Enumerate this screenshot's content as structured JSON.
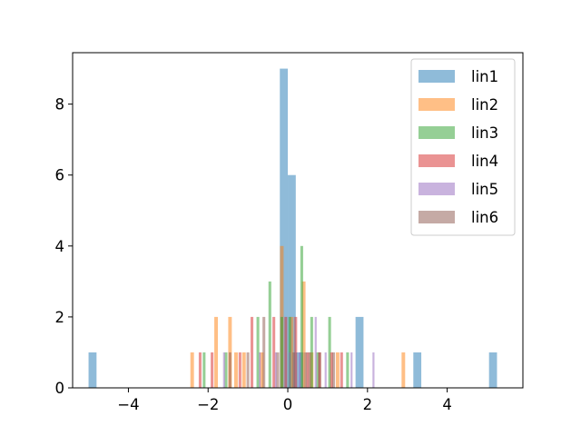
{
  "chart_data": {
    "type": "histogram",
    "title": "",
    "xlabel": "",
    "ylabel": "",
    "xlim": [
      -5.4,
      5.9
    ],
    "ylim": [
      0,
      9.45
    ],
    "grid": false,
    "legend_placement": "top-right",
    "xticks": [
      -4,
      -2,
      0,
      2,
      4
    ],
    "xtick_labels": [
      "−4",
      "−2",
      "0",
      "2",
      "4"
    ],
    "yticks": [
      0,
      2,
      4,
      6,
      8
    ],
    "ytick_labels": [
      "0",
      "2",
      "4",
      "6",
      "8"
    ],
    "bar_alpha": 0.5,
    "series": [
      {
        "name": "lin1",
        "color": "#1f77b4",
        "bin_width": 0.2,
        "bars": [
          [
            -4.9,
            1
          ],
          [
            -0.1,
            9
          ],
          [
            0.1,
            6
          ],
          [
            0.3,
            1
          ],
          [
            1.8,
            2
          ],
          [
            3.25,
            1
          ],
          [
            5.15,
            1
          ]
        ]
      },
      {
        "name": "lin2",
        "color": "#ff7f0e",
        "bin_width": 0.09,
        "bars": [
          [
            -2.4,
            1
          ],
          [
            -1.8,
            2
          ],
          [
            -1.45,
            2
          ],
          [
            -1.3,
            1
          ],
          [
            -1.1,
            1
          ],
          [
            -0.65,
            1
          ],
          [
            -0.15,
            4
          ],
          [
            0.1,
            2
          ],
          [
            0.4,
            3
          ],
          [
            0.6,
            1
          ],
          [
            1.25,
            1
          ],
          [
            2.9,
            1
          ]
        ]
      },
      {
        "name": "lin3",
        "color": "#2ca02c",
        "bin_width": 0.07,
        "bars": [
          [
            -2.1,
            1
          ],
          [
            -1.55,
            1
          ],
          [
            -0.75,
            2
          ],
          [
            -0.45,
            3
          ],
          [
            -0.15,
            2
          ],
          [
            0.05,
            2
          ],
          [
            0.35,
            4
          ],
          [
            0.6,
            2
          ],
          [
            0.75,
            1
          ],
          [
            1.05,
            2
          ],
          [
            1.5,
            1
          ]
        ]
      },
      {
        "name": "lin4",
        "color": "#d62728",
        "bin_width": 0.07,
        "bars": [
          [
            -2.2,
            1
          ],
          [
            -1.9,
            1
          ],
          [
            -1.2,
            1
          ],
          [
            -0.9,
            2
          ],
          [
            -0.35,
            2
          ],
          [
            -0.05,
            2
          ],
          [
            0.2,
            2
          ],
          [
            0.5,
            1
          ],
          [
            0.8,
            1
          ],
          [
            1.1,
            1
          ],
          [
            1.35,
            1
          ]
        ]
      },
      {
        "name": "lin5",
        "color": "#9467bd",
        "bin_width": 0.05,
        "bars": [
          [
            -1.6,
            1
          ],
          [
            -0.7,
            1
          ],
          [
            -0.3,
            1
          ],
          [
            0.05,
            1
          ],
          [
            0.3,
            1
          ],
          [
            0.7,
            2
          ],
          [
            0.95,
            1
          ],
          [
            1.6,
            1
          ],
          [
            2.15,
            1
          ]
        ]
      },
      {
        "name": "lin6",
        "color": "#8c564b",
        "bin_width": 0.07,
        "bars": [
          [
            -1.45,
            1
          ],
          [
            -1.0,
            1
          ],
          [
            -0.6,
            2
          ],
          [
            -0.25,
            1
          ],
          [
            0.15,
            1
          ],
          [
            0.45,
            1
          ],
          [
            0.55,
            1
          ],
          [
            0.8,
            1
          ],
          [
            1.15,
            1
          ]
        ]
      }
    ]
  }
}
